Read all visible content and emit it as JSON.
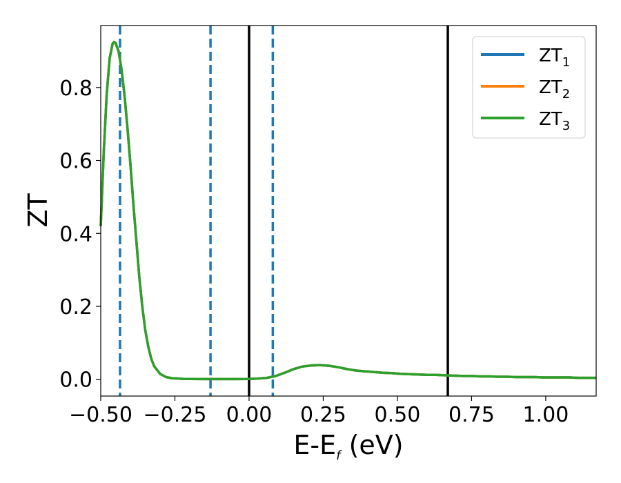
{
  "chart_data": {
    "type": "line",
    "xlabel": "E-E",
    "xlabel_subscript": "f",
    "xlabel_unit": " (eV)",
    "ylabel": "ZT",
    "xlim": [
      -0.5,
      1.17
    ],
    "ylim": [
      -0.046,
      0.97
    ],
    "x_ticks": [
      -0.5,
      -0.25,
      0.0,
      0.25,
      0.5,
      0.75,
      1.0
    ],
    "x_tick_labels": [
      "−0.50",
      "−0.25",
      "0.00",
      "0.25",
      "0.50",
      "0.75",
      "1.00"
    ],
    "y_ticks": [
      0.0,
      0.2,
      0.4,
      0.6,
      0.8
    ],
    "y_tick_labels": [
      "0.0",
      "0.2",
      "0.4",
      "0.6",
      "0.8"
    ],
    "grid": false,
    "legend_position": "top-right",
    "vertical_lines": [
      {
        "x": -0.435,
        "style": "dashed",
        "color": "#1f77b4"
      },
      {
        "x": -0.13,
        "style": "dashed",
        "color": "#1f77b4"
      },
      {
        "x": 0.0,
        "style": "solid",
        "color": "#000000"
      },
      {
        "x": 0.08,
        "style": "dashed",
        "color": "#1f77b4"
      },
      {
        "x": 0.67,
        "style": "solid",
        "color": "#000000"
      }
    ],
    "series": [
      {
        "name": "ZT",
        "subscript": "1",
        "color": "#1f77b4"
      },
      {
        "name": "ZT",
        "subscript": "2",
        "color": "#ff7f0e"
      },
      {
        "name": "ZT",
        "subscript": "3",
        "color": "#2ca02c"
      }
    ],
    "x": [
      -0.5,
      -0.49,
      -0.48,
      -0.47,
      -0.46,
      -0.455,
      -0.45,
      -0.44,
      -0.43,
      -0.42,
      -0.41,
      -0.4,
      -0.39,
      -0.38,
      -0.37,
      -0.36,
      -0.35,
      -0.34,
      -0.33,
      -0.32,
      -0.3,
      -0.28,
      -0.26,
      -0.24,
      -0.22,
      -0.2,
      -0.15,
      -0.1,
      -0.05,
      0.0,
      0.03,
      0.06,
      0.09,
      0.12,
      0.15,
      0.18,
      0.21,
      0.24,
      0.27,
      0.3,
      0.33,
      0.36,
      0.39,
      0.42,
      0.45,
      0.48,
      0.51,
      0.54,
      0.57,
      0.6,
      0.63,
      0.66,
      0.69,
      0.72,
      0.75,
      0.78,
      0.81,
      0.84,
      0.87,
      0.9,
      0.93,
      0.96,
      0.99,
      1.02,
      1.05,
      1.08,
      1.11,
      1.14,
      1.17
    ],
    "values": [
      0.42,
      0.62,
      0.78,
      0.88,
      0.92,
      0.925,
      0.922,
      0.9,
      0.85,
      0.78,
      0.69,
      0.59,
      0.48,
      0.38,
      0.28,
      0.2,
      0.135,
      0.09,
      0.057,
      0.036,
      0.015,
      0.006,
      0.003,
      0.002,
      0.001,
      0.001,
      0.0005,
      0.0005,
      0.0005,
      0.001,
      0.002,
      0.004,
      0.009,
      0.018,
      0.028,
      0.035,
      0.038,
      0.039,
      0.037,
      0.033,
      0.028,
      0.024,
      0.022,
      0.02,
      0.018,
      0.017,
      0.015,
      0.014,
      0.013,
      0.012,
      0.012,
      0.011,
      0.01,
      0.009,
      0.009,
      0.008,
      0.008,
      0.007,
      0.007,
      0.006,
      0.006,
      0.006,
      0.005,
      0.005,
      0.005,
      0.005,
      0.004,
      0.004,
      0.004
    ]
  }
}
